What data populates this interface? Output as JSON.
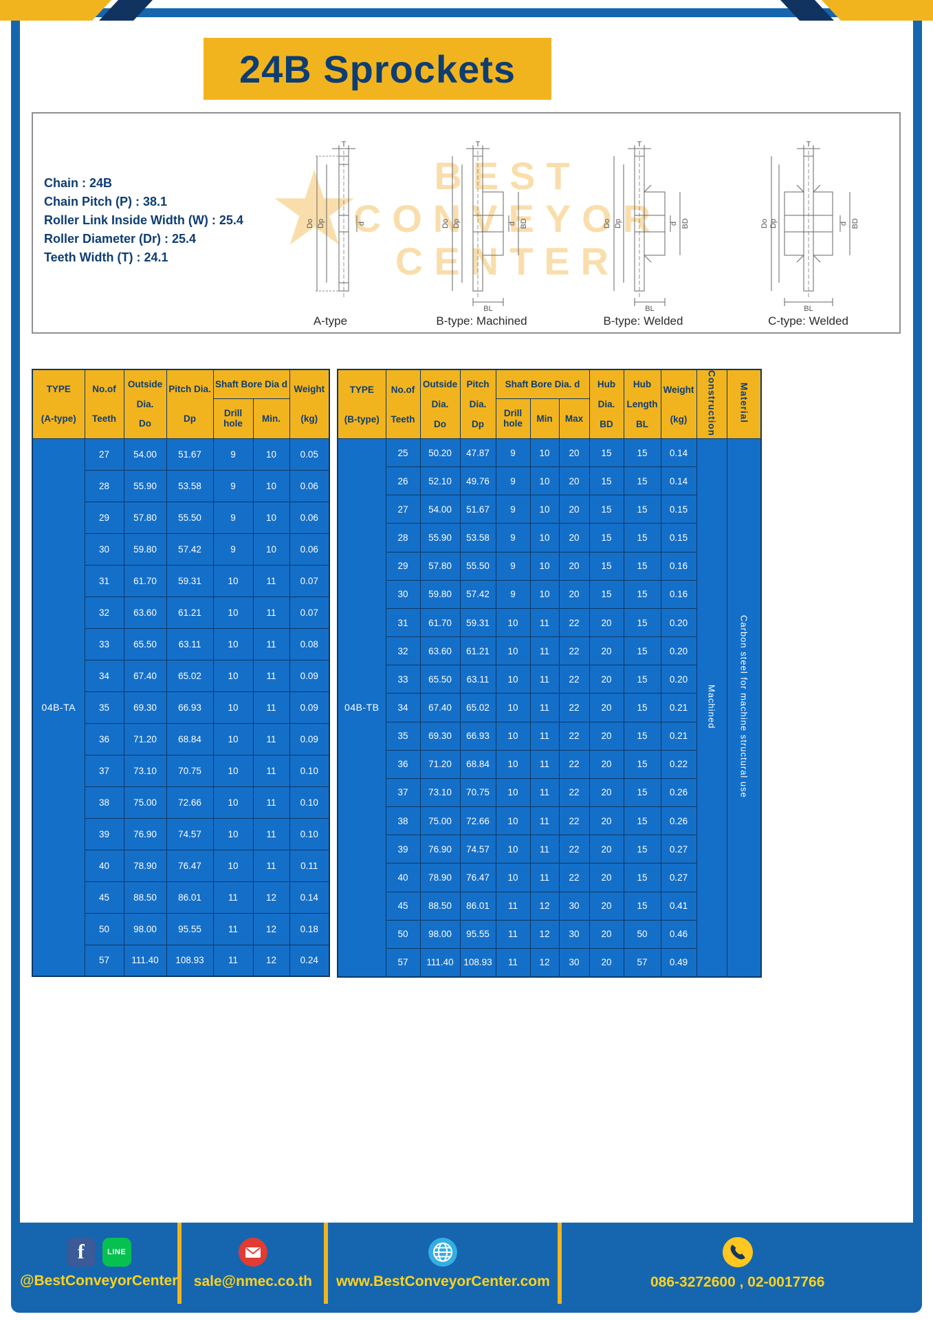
{
  "page": {
    "title": "24B Sprockets"
  },
  "colors": {
    "accent_yellow": "#f2b41e",
    "navy_text": "#0e3d72",
    "frame_blue": "#1566ae",
    "table_body_blue": "#146fc9",
    "footer_text_yellow": "#ffd21e",
    "watermark_orange": "#f0a928"
  },
  "specs": {
    "lines": [
      "Chain : 24B",
      "Chain Pitch (P) : 38.1",
      "Roller Link Inside Width (W) : 25.4",
      "Roller Diameter (Dr) : 25.4",
      "Teeth Width (T) : 24.1"
    ]
  },
  "diagram": {
    "captions": [
      "A-type",
      "B-type: Machined",
      "B-type: Welded",
      "C-type: Welded"
    ],
    "labels": {
      "t": "T",
      "do": "Do",
      "dp": "Dp",
      "d": "d",
      "bd": "BD",
      "bl": "BL"
    }
  },
  "watermark": {
    "line1": "BEST",
    "line2": "CONVEYOR",
    "line3": "CENTER",
    "star": "★"
  },
  "table_a": {
    "headers": {
      "type_line1": "TYPE",
      "type_line2": "(A-type)",
      "teeth_line1": "No.of",
      "teeth_line2": "Teeth",
      "outside_line1": "Outside",
      "outside_line2": "Dia.",
      "outside_line3": "Do",
      "pitch_line1": "Pitch Dia.",
      "pitch_line2": "Dp",
      "shaft_group": "Shaft Bore Dia d",
      "drill": "Drill hole",
      "min": "Min.",
      "weight_line1": "Weight",
      "weight_line2": "(kg)"
    },
    "type_value": "04B-TA",
    "rows": [
      [
        "27",
        "54.00",
        "51.67",
        "9",
        "10",
        "0.05"
      ],
      [
        "28",
        "55.90",
        "53.58",
        "9",
        "10",
        "0.06"
      ],
      [
        "29",
        "57.80",
        "55.50",
        "9",
        "10",
        "0.06"
      ],
      [
        "30",
        "59.80",
        "57.42",
        "9",
        "10",
        "0.06"
      ],
      [
        "31",
        "61.70",
        "59.31",
        "10",
        "11",
        "0.07"
      ],
      [
        "32",
        "63.60",
        "61.21",
        "10",
        "11",
        "0.07"
      ],
      [
        "33",
        "65.50",
        "63.11",
        "10",
        "11",
        "0.08"
      ],
      [
        "34",
        "67.40",
        "65.02",
        "10",
        "11",
        "0.09"
      ],
      [
        "35",
        "69.30",
        "66.93",
        "10",
        "11",
        "0.09"
      ],
      [
        "36",
        "71.20",
        "68.84",
        "10",
        "11",
        "0.09"
      ],
      [
        "37",
        "73.10",
        "70.75",
        "10",
        "11",
        "0.10"
      ],
      [
        "38",
        "75.00",
        "72.66",
        "10",
        "11",
        "0.10"
      ],
      [
        "39",
        "76.90",
        "74.57",
        "10",
        "11",
        "0.10"
      ],
      [
        "40",
        "78.90",
        "76.47",
        "10",
        "11",
        "0.11"
      ],
      [
        "45",
        "88.50",
        "86.01",
        "11",
        "12",
        "0.14"
      ],
      [
        "50",
        "98.00",
        "95.55",
        "11",
        "12",
        "0.18"
      ],
      [
        "57",
        "111.40",
        "108.93",
        "11",
        "12",
        "0.24"
      ]
    ]
  },
  "table_b": {
    "headers": {
      "type_line1": "TYPE",
      "type_line2": "(B-type)",
      "teeth_line1": "No.of",
      "teeth_line2": "Teeth",
      "outside_line1": "Outside",
      "outside_line2": "Dia.",
      "outside_line3": "Do",
      "pitch_line1": "Pitch",
      "pitch_line2": "Dia.",
      "pitch_line3": "Dp",
      "shaft_group": "Shaft Bore Dia.  d",
      "drill": "Drill hole",
      "min": "Min",
      "max": "Max",
      "hub_dia_line1": "Hub",
      "hub_dia_line2": "Dia.",
      "hub_dia_line3": "BD",
      "hub_len_line1": "Hub",
      "hub_len_line2": "Length",
      "hub_len_line3": "BL",
      "weight_line1": "Weight",
      "weight_line2": "(kg)",
      "construction": "Construction",
      "material": "Material"
    },
    "type_value": "04B-TB",
    "construction": "Machined",
    "material": "Carbon steel for machine structural use",
    "rows": [
      [
        "25",
        "50.20",
        "47.87",
        "9",
        "10",
        "20",
        "15",
        "15",
        "0.14"
      ],
      [
        "26",
        "52.10",
        "49.76",
        "9",
        "10",
        "20",
        "15",
        "15",
        "0.14"
      ],
      [
        "27",
        "54.00",
        "51.67",
        "9",
        "10",
        "20",
        "15",
        "15",
        "0.15"
      ],
      [
        "28",
        "55.90",
        "53.58",
        "9",
        "10",
        "20",
        "15",
        "15",
        "0.15"
      ],
      [
        "29",
        "57.80",
        "55.50",
        "9",
        "10",
        "20",
        "15",
        "15",
        "0.16"
      ],
      [
        "30",
        "59.80",
        "57.42",
        "9",
        "10",
        "20",
        "15",
        "15",
        "0.16"
      ],
      [
        "31",
        "61.70",
        "59.31",
        "10",
        "11",
        "22",
        "20",
        "15",
        "0.20"
      ],
      [
        "32",
        "63.60",
        "61.21",
        "10",
        "11",
        "22",
        "20",
        "15",
        "0.20"
      ],
      [
        "33",
        "65.50",
        "63.11",
        "10",
        "11",
        "22",
        "20",
        "15",
        "0.20"
      ],
      [
        "34",
        "67.40",
        "65.02",
        "10",
        "11",
        "22",
        "20",
        "15",
        "0.21"
      ],
      [
        "35",
        "69.30",
        "66.93",
        "10",
        "11",
        "22",
        "20",
        "15",
        "0.21"
      ],
      [
        "36",
        "71.20",
        "68.84",
        "10",
        "11",
        "22",
        "20",
        "15",
        "0.22"
      ],
      [
        "37",
        "73.10",
        "70.75",
        "10",
        "11",
        "22",
        "20",
        "15",
        "0.26"
      ],
      [
        "38",
        "75.00",
        "72.66",
        "10",
        "11",
        "22",
        "20",
        "15",
        "0.26"
      ],
      [
        "39",
        "76.90",
        "74.57",
        "10",
        "11",
        "22",
        "20",
        "15",
        "0.27"
      ],
      [
        "40",
        "78.90",
        "76.47",
        "10",
        "11",
        "22",
        "20",
        "15",
        "0.27"
      ],
      [
        "45",
        "88.50",
        "86.01",
        "11",
        "12",
        "30",
        "20",
        "15",
        "0.41"
      ],
      [
        "50",
        "98.00",
        "95.55",
        "11",
        "12",
        "30",
        "20",
        "50",
        "0.46"
      ],
      [
        "57",
        "111.40",
        "108.93",
        "11",
        "12",
        "30",
        "20",
        "57",
        "0.49"
      ]
    ]
  },
  "footer": {
    "facebook_glyph": "f",
    "line_label": "LINE",
    "social_text": "@BestConveyorCenter",
    "email": "sale@nmec.co.th",
    "website": "www.BestConveyorCenter.com",
    "phone": "086-3272600 , 02-0017766"
  }
}
